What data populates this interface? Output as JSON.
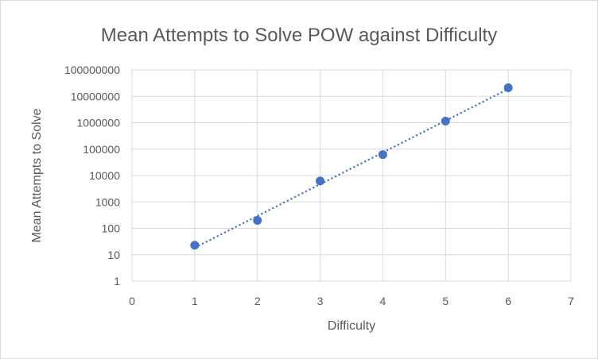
{
  "chart_data": {
    "type": "scatter",
    "title": "Mean Attempts to Solve POW against Difficulty",
    "xlabel": "Difficulty",
    "ylabel": "Mean Attempts to Solve",
    "x_scale": "linear",
    "y_scale": "log",
    "xlim": [
      0,
      7
    ],
    "ylim": [
      1,
      100000000
    ],
    "x_ticks": [
      "0",
      "1",
      "2",
      "3",
      "4",
      "5",
      "6",
      "7"
    ],
    "y_ticks": [
      "1",
      "10",
      "100",
      "1000",
      "10000",
      "100000",
      "1000000",
      "10000000",
      "100000000"
    ],
    "grid": true,
    "legend": "none",
    "trendline": "exponential, dotted",
    "series": [
      {
        "x": [
          1,
          2,
          3,
          4,
          5,
          6
        ],
        "y": [
          23,
          200,
          6200,
          62000,
          1150000,
          21000000
        ],
        "color": "#4472c4"
      }
    ]
  }
}
